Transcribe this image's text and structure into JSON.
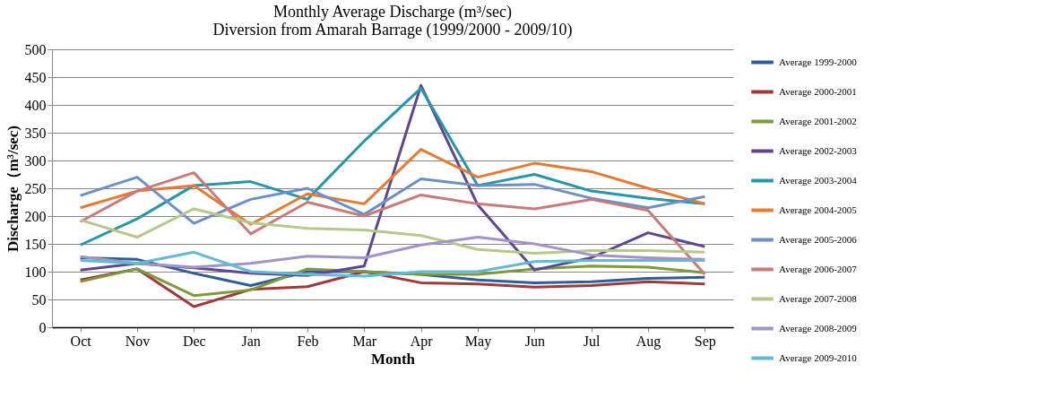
{
  "chart_data": {
    "type": "line",
    "title": [
      "Monthly  Average Discharge (m³/sec)",
      "Diversion from Amarah Barrage (1999/2000 - 2009/10)"
    ],
    "xlabel": "Month",
    "ylabel": "Discharge（m³/sec)",
    "categories": [
      "Oct",
      "Nov",
      "Dec",
      "Jan",
      "Feb",
      "Mar",
      "Apr",
      "May",
      "Jun",
      "Jul",
      "Aug",
      "Sep"
    ],
    "ylim": [
      0,
      500
    ],
    "yticks": [
      0,
      50,
      100,
      150,
      200,
      250,
      300,
      350,
      400,
      450,
      500
    ],
    "grid": "y",
    "legend": "right",
    "marker": "none",
    "line_style": "solid",
    "series": [
      {
        "name": "Average 1999-2000",
        "color": "#2e5d9a",
        "values": [
          125,
          122,
          97,
          75,
          100,
          100,
          95,
          85,
          80,
          82,
          88,
          90
        ]
      },
      {
        "name": "Average 2000-2001",
        "color": "#a0393a",
        "values": [
          85,
          105,
          37,
          68,
          73,
          100,
          80,
          78,
          72,
          75,
          82,
          78
        ]
      },
      {
        "name": "Average 2001-2002",
        "color": "#7f9a3a",
        "values": [
          82,
          105,
          57,
          67,
          105,
          100,
          95,
          95,
          105,
          110,
          108,
          98
        ]
      },
      {
        "name": "Average 2002-2003",
        "color": "#5e4690",
        "values": [
          103,
          115,
          107,
          97,
          93,
          110,
          435,
          220,
          103,
          125,
          170,
          145
        ]
      },
      {
        "name": "Average 2003-2004",
        "color": "#2796a8",
        "values": [
          148,
          195,
          255,
          262,
          230,
          335,
          430,
          255,
          275,
          245,
          232,
          222
        ]
      },
      {
        "name": "Average 2004-2005",
        "color": "#e57b32",
        "values": [
          215,
          245,
          255,
          185,
          240,
          222,
          320,
          270,
          295,
          280,
          250,
          222
        ]
      },
      {
        "name": "Average 2005-2006",
        "color": "#6b8fc6",
        "values": [
          237,
          270,
          187,
          230,
          250,
          203,
          267,
          255,
          257,
          232,
          215,
          235
        ]
      },
      {
        "name": "Average 2006-2007",
        "color": "#c97b7b",
        "values": [
          190,
          245,
          278,
          168,
          225,
          200,
          238,
          222,
          213,
          230,
          210,
          95
        ]
      },
      {
        "name": "Average 2007-2008",
        "color": "#b5c98a",
        "values": [
          193,
          162,
          213,
          188,
          178,
          175,
          165,
          140,
          133,
          138,
          138,
          135
        ]
      },
      {
        "name": "Average 2008-2009",
        "color": "#a294c6",
        "values": [
          127,
          115,
          108,
          115,
          128,
          125,
          148,
          162,
          150,
          130,
          125,
          122
        ]
      },
      {
        "name": "Average 2009-2010",
        "color": "#5fbbd6",
        "values": [
          120,
          115,
          135,
          100,
          95,
          92,
          100,
          100,
          118,
          120,
          120,
          120
        ]
      }
    ]
  }
}
